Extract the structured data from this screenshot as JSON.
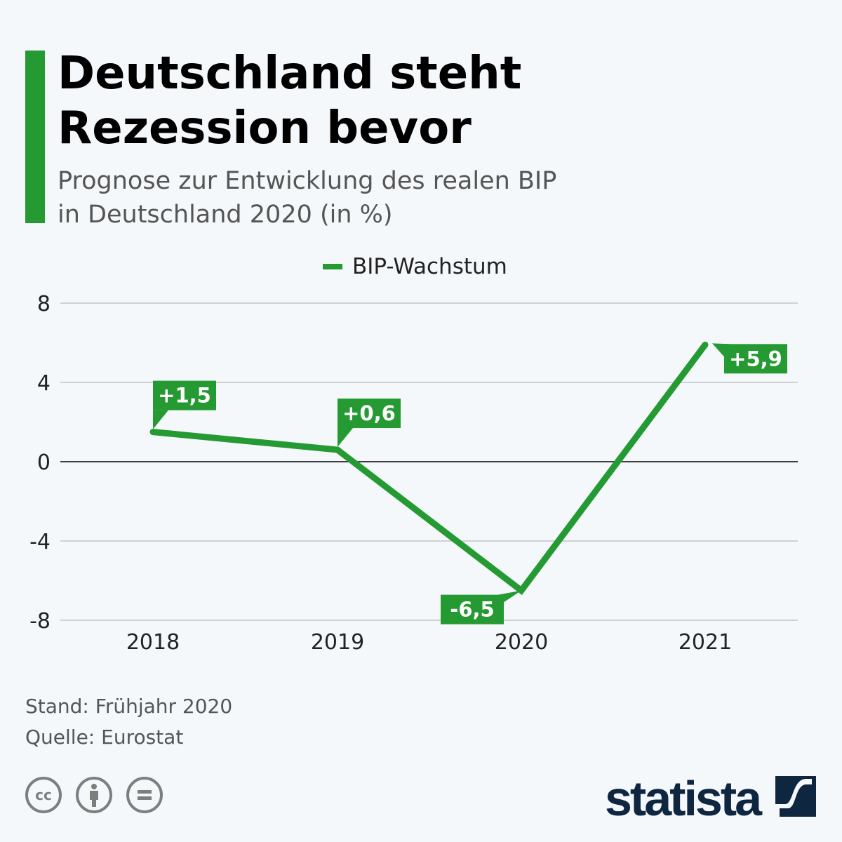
{
  "header": {
    "title": "Deutschland steht\nRezession bevor",
    "subtitle": "Prognose zur Entwicklung des realen BIP\nin Deutschland 2020 (in %)"
  },
  "chart_data": {
    "type": "line",
    "title": "Deutschland steht Rezession bevor",
    "categories": [
      "2018",
      "2019",
      "2020",
      "2021"
    ],
    "series": [
      {
        "name": "BIP-Wachstum",
        "values": [
          1.5,
          0.6,
          -6.5,
          5.9
        ],
        "color": "#259a32"
      }
    ],
    "data_labels": [
      "+1,5",
      "+0,6",
      "-6,5",
      "+5,9"
    ],
    "ylim": [
      -8,
      8
    ],
    "yticks": [
      8,
      4,
      0,
      -4,
      -8
    ],
    "ytick_labels": [
      "8",
      "4",
      "0",
      "-4",
      "-8"
    ],
    "grid": true,
    "legend": "top"
  },
  "footer": {
    "stand": "Stand: Frühjahr 2020",
    "source": "Quelle: Eurostat",
    "license_icons": [
      "cc-icon",
      "attribution-icon",
      "no-derivatives-icon"
    ],
    "cc_text": "cc",
    "logo": "statista"
  }
}
